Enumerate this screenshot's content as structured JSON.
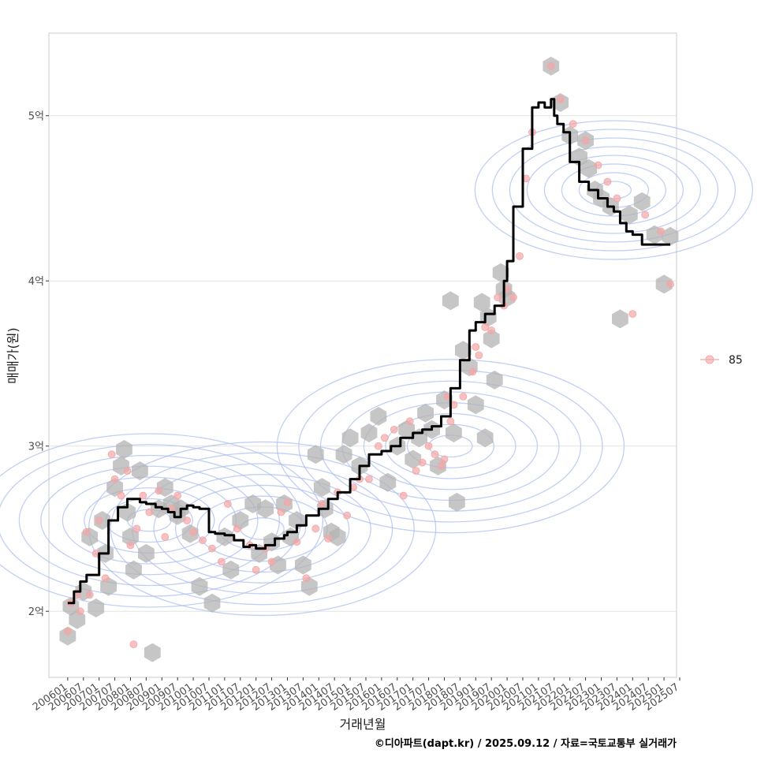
{
  "chart_data": {
    "type": "line",
    "title": "",
    "xlabel": "거래년월",
    "ylabel": "매매가(원)",
    "caption": "©디아파트(dapt.kr) / 2025.09.12 / 자료=국토교통부 실거래가",
    "legend": {
      "position": "right",
      "entries": [
        {
          "label": "85",
          "color": "#f4a6a6"
        }
      ]
    },
    "colors": {
      "line": "#000000",
      "hex": "#b3b3b3",
      "points": "#f4a6a6",
      "contour": "#aebff0",
      "grid": "#e3e3e3"
    },
    "x_tick_labels": [
      "200601",
      "200607",
      "200701",
      "200707",
      "200801",
      "200807",
      "200901",
      "200907",
      "201001",
      "201007",
      "201101",
      "201107",
      "201201",
      "201207",
      "201301",
      "201307",
      "201401",
      "201407",
      "201501",
      "201507",
      "201601",
      "201607",
      "201701",
      "201707",
      "201801",
      "201807",
      "201901",
      "201907",
      "202001",
      "202007",
      "202101",
      "202107",
      "202201",
      "202207",
      "202301",
      "202307",
      "202401",
      "202407",
      "202501",
      "202507"
    ],
    "y_ticks": [
      {
        "value": 2.0,
        "label": "2억"
      },
      {
        "value": 3.0,
        "label": "3억"
      },
      {
        "value": 4.0,
        "label": "4억"
      },
      {
        "value": 5.0,
        "label": "5억"
      }
    ],
    "ylim": [
      1.6,
      5.5
    ],
    "xlim": [
      2005.4,
      2025.4
    ],
    "grid": true,
    "series": [
      {
        "name": "moving-average",
        "type": "step-line",
        "unit": "억원",
        "x": [
          2006.0,
          2006.2,
          2006.4,
          2006.6,
          2007.0,
          2007.3,
          2007.6,
          2007.9,
          2008.0,
          2008.3,
          2008.5,
          2008.8,
          2009.0,
          2009.2,
          2009.4,
          2009.6,
          2009.8,
          2010.0,
          2010.2,
          2010.5,
          2010.7,
          2011.0,
          2011.3,
          2011.6,
          2011.8,
          2012.0,
          2012.3,
          2012.6,
          2012.9,
          2013.0,
          2013.3,
          2013.6,
          2014.0,
          2014.3,
          2014.6,
          2015.0,
          2015.3,
          2015.6,
          2016.0,
          2016.3,
          2016.6,
          2017.0,
          2017.3,
          2017.6,
          2017.9,
          2018.2,
          2018.5,
          2018.8,
          2019.0,
          2019.3,
          2019.6,
          2019.9,
          2020.0,
          2020.2,
          2020.5,
          2020.8,
          2021.0,
          2021.2,
          2021.4,
          2021.5,
          2021.6,
          2021.8,
          2021.9,
          2022.0,
          2022.3,
          2022.6,
          2022.9,
          2023.2,
          2023.4,
          2023.6,
          2023.8,
          2024.0,
          2024.3,
          2024.6,
          2024.9,
          2025.2
        ],
        "values": [
          2.05,
          2.12,
          2.18,
          2.22,
          2.35,
          2.55,
          2.63,
          2.68,
          2.68,
          2.66,
          2.65,
          2.63,
          2.62,
          2.6,
          2.57,
          2.62,
          2.64,
          2.63,
          2.62,
          2.48,
          2.47,
          2.46,
          2.43,
          2.39,
          2.4,
          2.38,
          2.4,
          2.44,
          2.46,
          2.48,
          2.52,
          2.58,
          2.62,
          2.68,
          2.72,
          2.8,
          2.88,
          2.95,
          2.97,
          3.0,
          3.05,
          3.08,
          3.1,
          3.12,
          3.18,
          3.35,
          3.52,
          3.7,
          3.75,
          3.8,
          3.85,
          4.0,
          4.12,
          4.45,
          4.8,
          5.05,
          5.08,
          5.05,
          5.1,
          5.0,
          4.95,
          4.9,
          4.9,
          4.72,
          4.6,
          4.55,
          4.5,
          4.45,
          4.42,
          4.35,
          4.3,
          4.28,
          4.22,
          4.22,
          4.22,
          4.22
        ]
      },
      {
        "name": "85",
        "type": "scatter",
        "unit": "억원",
        "x": [
          2006.0,
          2006.1,
          2006.3,
          2006.4,
          2006.6,
          2006.7,
          2006.9,
          2007.0,
          2007.2,
          2007.4,
          2007.5,
          2007.7,
          2007.9,
          2008.0,
          2008.1,
          2008.2,
          2008.4,
          2008.6,
          2008.9,
          2009.1,
          2009.3,
          2009.5,
          2009.8,
          2010.0,
          2010.3,
          2010.6,
          2010.9,
          2011.1,
          2011.4,
          2011.8,
          2012.0,
          2012.3,
          2012.5,
          2012.8,
          2013.0,
          2013.3,
          2013.6,
          2013.9,
          2014.1,
          2014.3,
          2014.6,
          2014.9,
          2015.1,
          2015.3,
          2015.6,
          2015.9,
          2016.1,
          2016.4,
          2016.7,
          2016.9,
          2017.1,
          2017.3,
          2017.5,
          2017.7,
          2017.9,
          2018.0,
          2018.1,
          2018.2,
          2018.3,
          2018.6,
          2018.9,
          2019.0,
          2019.1,
          2019.3,
          2019.5,
          2019.7,
          2019.9,
          2020.0,
          2020.2,
          2020.4,
          2020.6,
          2020.8,
          2021.4,
          2021.7,
          2022.1,
          2022.5,
          2022.9,
          2023.2,
          2023.5,
          2024.0,
          2024.4,
          2024.9,
          2025.2
        ],
        "values": [
          1.88,
          2.05,
          2.1,
          2.0,
          2.48,
          2.1,
          2.35,
          2.55,
          2.2,
          2.95,
          2.8,
          2.7,
          2.85,
          2.4,
          1.8,
          2.5,
          2.7,
          2.6,
          2.73,
          2.45,
          2.62,
          2.7,
          2.55,
          2.48,
          2.43,
          2.38,
          2.3,
          2.65,
          2.5,
          2.4,
          2.25,
          2.38,
          2.3,
          2.6,
          2.66,
          2.42,
          2.2,
          2.5,
          2.65,
          2.44,
          2.72,
          2.58,
          2.75,
          2.8,
          2.8,
          3.0,
          3.05,
          3.1,
          2.7,
          3.15,
          2.85,
          2.9,
          3.0,
          2.95,
          2.88,
          2.92,
          3.3,
          3.15,
          3.25,
          3.3,
          3.45,
          3.6,
          3.55,
          3.72,
          3.7,
          3.9,
          3.85,
          3.95,
          3.9,
          4.15,
          4.62,
          4.9,
          5.3,
          5.1,
          4.95,
          4.85,
          4.7,
          4.6,
          4.5,
          3.8,
          4.4,
          4.3,
          3.98
        ]
      },
      {
        "name": "hexbin-density",
        "type": "hexbin",
        "unit": "억원",
        "x": [
          2006.0,
          2006.1,
          2006.3,
          2006.5,
          2006.7,
          2006.9,
          2007.1,
          2007.2,
          2007.3,
          2007.5,
          2007.7,
          2007.8,
          2007.9,
          2008.0,
          2008.1,
          2008.3,
          2008.5,
          2008.7,
          2008.9,
          2009.1,
          2009.3,
          2009.5,
          2009.6,
          2009.9,
          2010.2,
          2010.6,
          2011.0,
          2011.2,
          2011.5,
          2011.9,
          2012.1,
          2012.3,
          2012.5,
          2012.7,
          2012.9,
          2013.1,
          2013.3,
          2013.5,
          2013.7,
          2013.9,
          2014.1,
          2014.2,
          2014.4,
          2014.6,
          2014.8,
          2015.0,
          2015.3,
          2015.6,
          2015.9,
          2016.2,
          2016.5,
          2016.8,
          2017.0,
          2017.2,
          2017.4,
          2017.6,
          2017.8,
          2018.0,
          2018.2,
          2018.3,
          2018.4,
          2018.6,
          2018.8,
          2019.0,
          2019.2,
          2019.3,
          2019.4,
          2019.5,
          2019.6,
          2019.8,
          2019.9,
          2020.0,
          2021.4,
          2021.7,
          2022.0,
          2022.3,
          2022.5,
          2022.6,
          2022.8,
          2023.0,
          2023.3,
          2023.6,
          2023.9,
          2024.3,
          2024.7,
          2025.0,
          2025.2
        ],
        "values": [
          1.85,
          2.03,
          1.95,
          2.12,
          2.45,
          2.02,
          2.55,
          2.35,
          2.15,
          2.75,
          2.88,
          2.98,
          2.6,
          2.45,
          2.25,
          2.85,
          2.35,
          1.75,
          2.62,
          2.75,
          2.65,
          2.58,
          2.62,
          2.47,
          2.15,
          2.05,
          2.45,
          2.25,
          2.55,
          2.65,
          2.35,
          2.62,
          2.42,
          2.28,
          2.65,
          2.45,
          2.55,
          2.28,
          2.15,
          2.95,
          2.75,
          2.62,
          2.48,
          2.45,
          2.95,
          3.05,
          2.88,
          3.08,
          3.18,
          2.78,
          3.0,
          3.1,
          2.92,
          3.05,
          3.2,
          3.1,
          2.88,
          3.28,
          3.88,
          3.08,
          2.66,
          3.58,
          3.48,
          3.25,
          3.87,
          3.05,
          3.78,
          3.65,
          3.4,
          4.05,
          3.95,
          3.9,
          5.3,
          5.08,
          4.88,
          4.75,
          4.85,
          4.68,
          4.55,
          4.5,
          4.45,
          3.77,
          4.4,
          4.48,
          4.28,
          3.98,
          4.27
        ]
      },
      {
        "name": "density-contour-center",
        "type": "contour",
        "unit": "억원",
        "x": [
          2008.6,
          2012.2,
          2018.2,
          2023.4
        ],
        "values": [
          2.55,
          2.5,
          3.0,
          4.55
        ]
      }
    ]
  }
}
